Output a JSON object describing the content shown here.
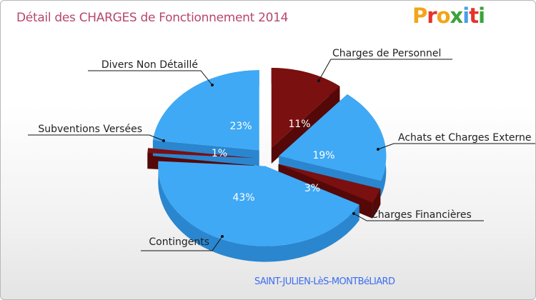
{
  "title": "Détail des CHARGES de Fonctionnement 2014",
  "logo": "Proxiti",
  "city": "SAINT-JULIEN-LèS-MONTBéLIARD",
  "colors": {
    "title": "#b8466e",
    "blue_top": "#3fa9f5",
    "blue_side": "#2a86cf",
    "red_top": "#7a1010",
    "red_side": "#550808",
    "city": "#3c6ef0"
  },
  "chart_data": {
    "type": "pie",
    "title": "Détail des CHARGES de Fonctionnement 2014",
    "units": "%",
    "slices": [
      {
        "label": "Charges de Personnel",
        "value": 11,
        "value_label": "11%",
        "color": "red"
      },
      {
        "label": "Achats et Charges Externes",
        "value": 19,
        "value_label": "19%",
        "color": "blue",
        "visible_label": "Achats et Charges Externe"
      },
      {
        "label": "Charges Financières",
        "value": 3,
        "value_label": "3%",
        "color": "red"
      },
      {
        "label": "Contingents",
        "value": 43,
        "value_label": "43%",
        "color": "blue"
      },
      {
        "label": "Subventions Versées",
        "value": 1,
        "value_label": "1%",
        "color": "red"
      },
      {
        "label": "Divers Non Détaillé",
        "value": 23,
        "value_label": "23%",
        "color": "blue"
      }
    ]
  }
}
